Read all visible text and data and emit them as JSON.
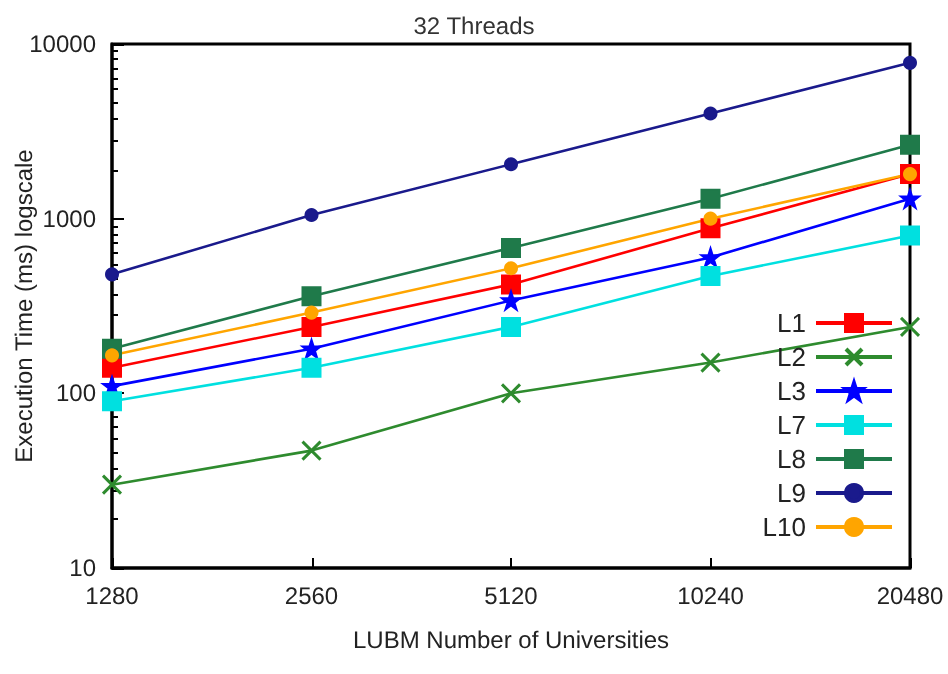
{
  "chart_data": {
    "type": "line",
    "title": "32 Threads",
    "xlabel": "LUBM Number of Universities",
    "ylabel": "Execution Time (ms) logscale",
    "categories": [
      "1280",
      "2560",
      "5120",
      "10240",
      "20480"
    ],
    "log": "y",
    "ylim": [
      10,
      10000
    ],
    "yticks": [
      10,
      100,
      1000,
      10000
    ],
    "grid": false,
    "legend": "bottom right",
    "series": [
      {
        "name": "L1",
        "color": "#ff0000",
        "marker": "square",
        "values": [
          140,
          240,
          420,
          880,
          1800
        ]
      },
      {
        "name": "L2",
        "color": "#2e8b2e",
        "marker": "cross",
        "values": [
          30,
          47,
          100,
          150,
          240
        ]
      },
      {
        "name": "L3",
        "color": "#0000ff",
        "marker": "star",
        "values": [
          110,
          180,
          340,
          600,
          1300
        ]
      },
      {
        "name": "L7",
        "color": "#00e0e0",
        "marker": "square",
        "values": [
          90,
          140,
          240,
          470,
          800
        ]
      },
      {
        "name": "L8",
        "color": "#1f7a4a",
        "marker": "square",
        "values": [
          180,
          360,
          680,
          1300,
          2650
        ]
      },
      {
        "name": "L9",
        "color": "#1a1a8c",
        "marker": "circle",
        "values": [
          480,
          1050,
          2050,
          4000,
          7800
        ]
      },
      {
        "name": "L10",
        "color": "#ffa500",
        "marker": "circle",
        "values": [
          165,
          290,
          520,
          1000,
          1800
        ]
      }
    ]
  }
}
